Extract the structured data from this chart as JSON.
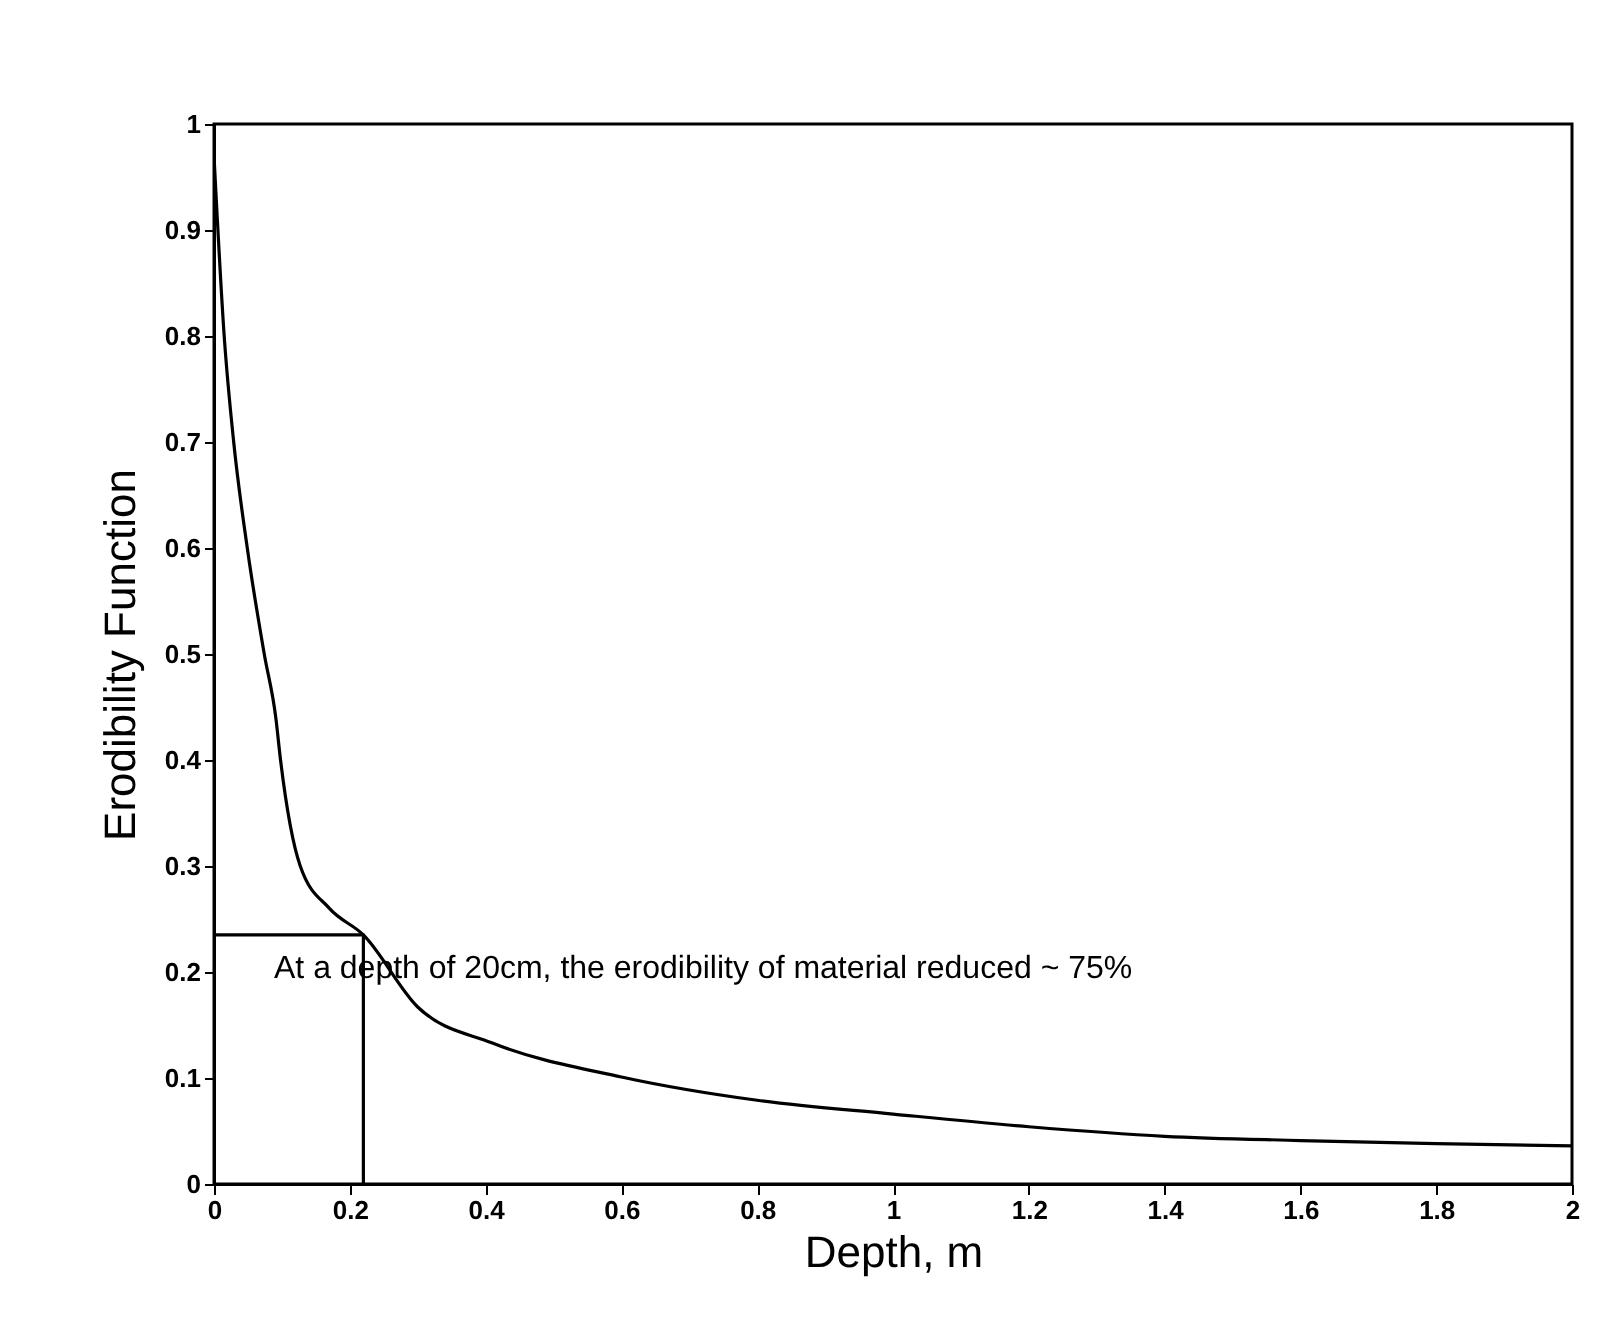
{
  "chart_data": {
    "type": "line",
    "xlabel": "Depth, m",
    "ylabel": "Erodibility Function",
    "annotations": [
      "At a depth of 20cm, the erodibility of material reduced ~ 75%"
    ],
    "xlim": [
      0,
      2
    ],
    "ylim": [
      0,
      1
    ],
    "xticks": [
      0,
      0.2,
      0.4,
      0.6,
      0.8,
      1,
      1.2,
      1.4,
      1.6,
      1.8,
      2
    ],
    "yticks": [
      0,
      0.1,
      0.2,
      0.3,
      0.4,
      0.5,
      0.6,
      0.7,
      0.8,
      0.9,
      1
    ],
    "series": [
      {
        "color": "#000000",
        "x": [
          0,
          0.015,
          0.029,
          0.049,
          0.074,
          0.091,
          0.098,
          0.127,
          0.17,
          0.22,
          0.3,
          0.41,
          0.6,
          0.8,
          1.0,
          1.2,
          1.4,
          1.6,
          1.8,
          2.0
        ],
        "values": [
          0.97,
          0.8,
          0.7,
          0.6,
          0.5,
          0.44,
          0.4,
          0.3,
          0.26,
          0.235,
          0.167,
          0.133,
          0.101,
          0.079,
          0.066,
          0.054,
          0.045,
          0.041,
          0.038,
          0.036
        ]
      },
      {
        "color": "#000000",
        "x": [
          0,
          0.22,
          0.22
        ],
        "values": [
          0.235,
          0.235,
          0
        ]
      }
    ]
  }
}
